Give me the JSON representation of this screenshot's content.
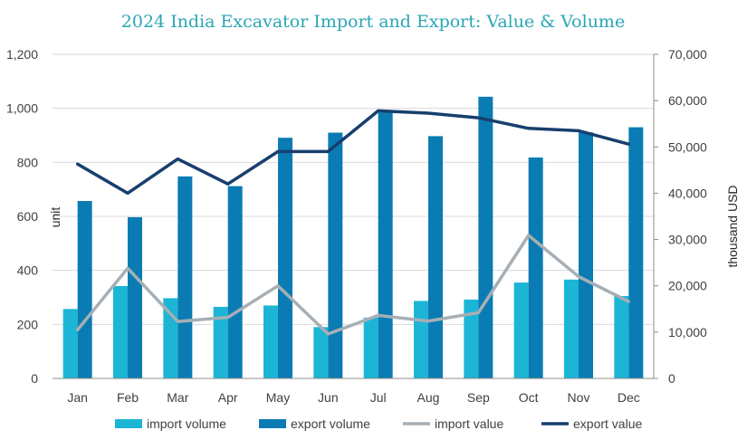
{
  "chart_data": {
    "type": "bar",
    "title": "2024 India Excavator Import and Export: Value & Volume",
    "categories": [
      "Jan",
      "Feb",
      "Mar",
      "Apr",
      "May",
      "Jun",
      "Jul",
      "Aug",
      "Sep",
      "Oct",
      "Nov",
      "Dec"
    ],
    "ylabel": "unit",
    "y2label": "thousand USD",
    "ylim": [
      0,
      1200
    ],
    "y2lim": [
      0,
      70000
    ],
    "yticks": [
      "0",
      "200",
      "400",
      "600",
      "800",
      "1,000",
      "1,200"
    ],
    "y2ticks": [
      "0",
      "10,000",
      "20,000",
      "30,000",
      "40,000",
      "50,000",
      "60,000",
      "70,000"
    ],
    "grid": true,
    "legend_position": "bottom",
    "series": [
      {
        "name": "import volume",
        "kind": "bar",
        "axis": "left",
        "color": "#1cb5d5",
        "values": [
          257,
          342,
          297,
          265,
          270,
          190,
          225,
          287,
          292,
          355,
          366,
          305
        ]
      },
      {
        "name": "export volume",
        "kind": "bar",
        "axis": "left",
        "color": "#0a7cb3",
        "values": [
          657,
          597,
          748,
          712,
          891,
          910,
          985,
          897,
          1043,
          818,
          911,
          930
        ]
      },
      {
        "name": "import value",
        "kind": "line",
        "axis": "right",
        "color": "#a6afb5",
        "values": [
          10500,
          23800,
          12300,
          13200,
          20000,
          9600,
          13600,
          12400,
          14200,
          30900,
          22000,
          16600
        ]
      },
      {
        "name": "export value",
        "kind": "line",
        "axis": "right",
        "color": "#173f6e",
        "values": [
          46300,
          40000,
          47400,
          42000,
          49000,
          49000,
          57800,
          57300,
          56300,
          54000,
          53500,
          50600
        ]
      }
    ]
  }
}
